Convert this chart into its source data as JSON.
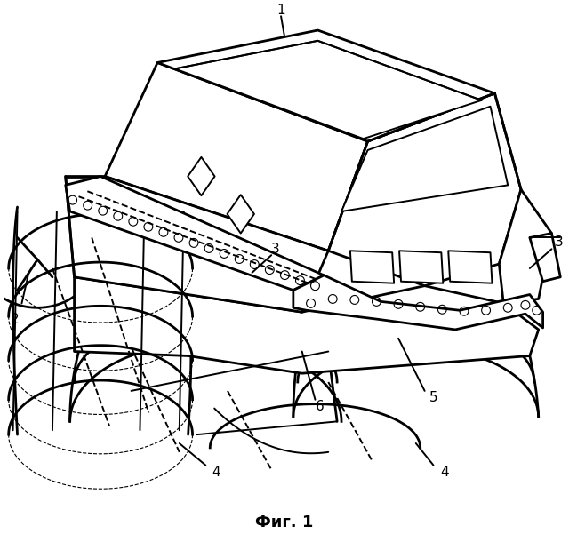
{
  "caption": "Фиг. 1",
  "caption_fontsize": 13,
  "caption_fontweight": "bold",
  "bg_color": "#ffffff",
  "line_color": "#000000",
  "lw": 1.4,
  "lw_thick": 2.0,
  "lw_thin": 0.8,
  "fig_width": 6.4,
  "fig_height": 6.19,
  "label_fontsize": 11
}
